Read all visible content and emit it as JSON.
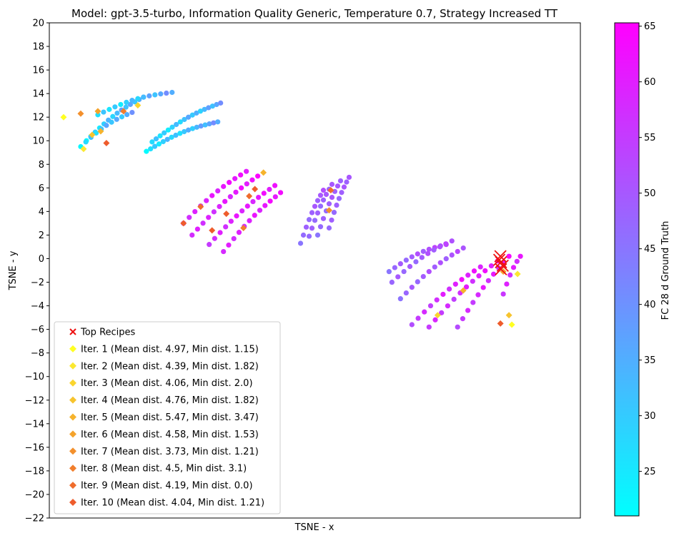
{
  "chart_data": {
    "type": "scatter",
    "title": "Model: gpt-3.5-turbo, Information Quality Generic, Temperature 0.7, Strategy Increased TT",
    "xlabel": "TSNE - x",
    "ylabel": "TSNE - y",
    "ylim": [
      -22,
      20
    ],
    "yticks": [
      20,
      18,
      16,
      14,
      12,
      10,
      8,
      6,
      4,
      2,
      0,
      -2,
      -4,
      -6,
      -8,
      -10,
      -12,
      -14,
      -16,
      -18,
      -20,
      -22
    ],
    "x_ticks_shown": false,
    "grid": false,
    "legend_position": "lower-left",
    "colorbar": {
      "label": "FC 28 d Ground Truth",
      "range": [
        21,
        65.3
      ],
      "ticks": [
        25,
        30,
        35,
        40,
        45,
        50,
        55,
        60,
        65
      ],
      "colormap": "cool"
    },
    "colors": {
      "top_recipes": "#ee1111",
      "iterations": [
        "#ffff22",
        "#fbe830",
        "#fad52e",
        "#f7c42e",
        "#f6b32c",
        "#f4a32c",
        "#f3902c",
        "#f17e2c",
        "#ef6c2c",
        "#ee5c2c"
      ]
    },
    "legend": [
      {
        "label": "Top Recipes",
        "marker": "x"
      },
      {
        "label": "Iter. 1 (Mean dist. 4.97, Min dist. 1.15)",
        "marker": "diamond"
      },
      {
        "label": "Iter. 2 (Mean dist. 4.39, Min dist. 1.82)",
        "marker": "diamond"
      },
      {
        "label": "Iter. 3 (Mean dist. 4.06, Min dist. 2.0)",
        "marker": "diamond"
      },
      {
        "label": "Iter. 4 (Mean dist. 4.76, Min dist. 1.82)",
        "marker": "diamond"
      },
      {
        "label": "Iter. 5 (Mean dist. 5.47, Min dist. 3.47)",
        "marker": "diamond"
      },
      {
        "label": "Iter. 6 (Mean dist. 4.58, Min dist. 1.53)",
        "marker": "diamond"
      },
      {
        "label": "Iter. 7 (Mean dist. 3.73, Min dist. 1.21)",
        "marker": "diamond"
      },
      {
        "label": "Iter. 8 (Mean dist. 4.5, Min dist. 3.1)",
        "marker": "diamond"
      },
      {
        "label": "Iter. 9 (Mean dist. 4.19, Min dist. 0.0)",
        "marker": "diamond"
      },
      {
        "label": "Iter. 10 (Mean dist. 4.04, Min dist. 1.21)",
        "marker": "diamond"
      }
    ],
    "clusters": [
      {
        "name": "upper-left",
        "value_range": [
          21,
          42
        ],
        "arcs": [
          {
            "x0": -40,
            "x1": -30,
            "y0": 10.0,
            "y1": 13.7,
            "n": 14
          },
          {
            "x0": -38,
            "x1": -25,
            "y0": 12.2,
            "y1": 14.1,
            "n": 14
          },
          {
            "x0": -29.5,
            "x1": -17,
            "y0": 9.1,
            "y1": 11.6,
            "n": 18
          },
          {
            "x0": -28.5,
            "x1": -16.5,
            "y0": 9.9,
            "y1": 13.2,
            "n": 18
          },
          {
            "x0": -41,
            "x1": -32,
            "y0": 9.5,
            "y1": 12.4,
            "n": 11
          }
        ]
      },
      {
        "name": "middle",
        "value_range": [
          55,
          65
        ],
        "arcs": [
          {
            "x0": -23,
            "x1": -12,
            "y0": 3.0,
            "y1": 7.4,
            "n": 12
          },
          {
            "x0": -21.5,
            "x1": -10,
            "y0": 2.0,
            "y1": 7.0,
            "n": 13
          },
          {
            "x0": -18.5,
            "x1": -7,
            "y0": 1.2,
            "y1": 6.2,
            "n": 13
          },
          {
            "x0": -16,
            "x1": -6,
            "y0": 0.6,
            "y1": 5.6,
            "n": 12
          }
        ]
      },
      {
        "name": "middle-right",
        "value_range": [
          45,
          52
        ],
        "arcs": [
          {
            "x0": -2.5,
            "x1": 1.5,
            "y0": 1.3,
            "y1": 5.8,
            "n": 9
          },
          {
            "x0": -1.0,
            "x1": 3.0,
            "y0": 1.9,
            "y1": 6.3,
            "n": 9
          },
          {
            "x0": 0.5,
            "x1": 4.5,
            "y0": 2.0,
            "y1": 6.6,
            "n": 9
          },
          {
            "x0": 2.5,
            "x1": 6.0,
            "y0": 2.6,
            "y1": 6.9,
            "n": 9
          }
        ]
      },
      {
        "name": "lower-right-upper",
        "value_range": [
          45,
          55
        ],
        "arcs": [
          {
            "x0": 13,
            "x1": 23,
            "y0": -1.1,
            "y1": 1.2,
            "n": 11
          },
          {
            "x0": 13.5,
            "x1": 24,
            "y0": -2.0,
            "y1": 1.5,
            "n": 11
          },
          {
            "x0": 15,
            "x1": 26,
            "y0": -3.4,
            "y1": 0.9,
            "n": 12
          }
        ]
      },
      {
        "name": "lower-right-lower",
        "value_range": [
          52,
          65
        ],
        "arcs": [
          {
            "x0": 17,
            "x1": 29,
            "y0": -5.6,
            "y1": -0.7,
            "n": 12
          },
          {
            "x0": 20,
            "x1": 32,
            "y0": -5.8,
            "y1": -0.2,
            "n": 12
          },
          {
            "x0": 25,
            "x1": 34,
            "y0": -5.8,
            "y1": 0.2,
            "n": 11
          },
          {
            "x0": 33,
            "x1": 36,
            "y0": -3.0,
            "y1": 0.2,
            "n": 6
          }
        ]
      }
    ],
    "top_recipes": [
      [
        32.5,
        0.2
      ],
      [
        32.6,
        -0.3
      ],
      [
        32.9,
        -0.6
      ],
      [
        32.6,
        -0.9
      ],
      [
        32.3,
        -0.1
      ]
    ],
    "iteration_markers": [
      {
        "x": -44.0,
        "y": 12.0,
        "iter": 1
      },
      {
        "x": -40.5,
        "y": 9.3,
        "iter": 2
      },
      {
        "x": -39.0,
        "y": 10.5,
        "iter": 4
      },
      {
        "x": -37.5,
        "y": 10.8,
        "iter": 5
      },
      {
        "x": -36.5,
        "y": 9.8,
        "iter": 10
      },
      {
        "x": -33.5,
        "y": 12.5,
        "iter": 8
      },
      {
        "x": -38.0,
        "y": 12.5,
        "iter": 6
      },
      {
        "x": -41.0,
        "y": 12.3,
        "iter": 7
      },
      {
        "x": -31.0,
        "y": 13.0,
        "iter": 3
      },
      {
        "x": -23.0,
        "y": 3.0,
        "iter": 10
      },
      {
        "x": -20.0,
        "y": 4.4,
        "iter": 9
      },
      {
        "x": -18.0,
        "y": 2.4,
        "iter": 10
      },
      {
        "x": -15.5,
        "y": 3.8,
        "iter": 10
      },
      {
        "x": -11.5,
        "y": 5.3,
        "iter": 9
      },
      {
        "x": -10.5,
        "y": 5.9,
        "iter": 10
      },
      {
        "x": -9.0,
        "y": 7.3,
        "iter": 5
      },
      {
        "x": -12.5,
        "y": 2.6,
        "iter": 8
      },
      {
        "x": 2.5,
        "y": 4.1,
        "iter": 7
      },
      {
        "x": 2.8,
        "y": 5.8,
        "iter": 9
      },
      {
        "x": 21.5,
        "y": -4.8,
        "iter": 3
      },
      {
        "x": 26.0,
        "y": -2.7,
        "iter": 5
      },
      {
        "x": 33.0,
        "y": -1.1,
        "iter": 6
      },
      {
        "x": 34.0,
        "y": -4.8,
        "iter": 4
      },
      {
        "x": 32.5,
        "y": -5.5,
        "iter": 10
      },
      {
        "x": 34.5,
        "y": -5.6,
        "iter": 1
      },
      {
        "x": 35.5,
        "y": -1.3,
        "iter": 2
      }
    ]
  }
}
